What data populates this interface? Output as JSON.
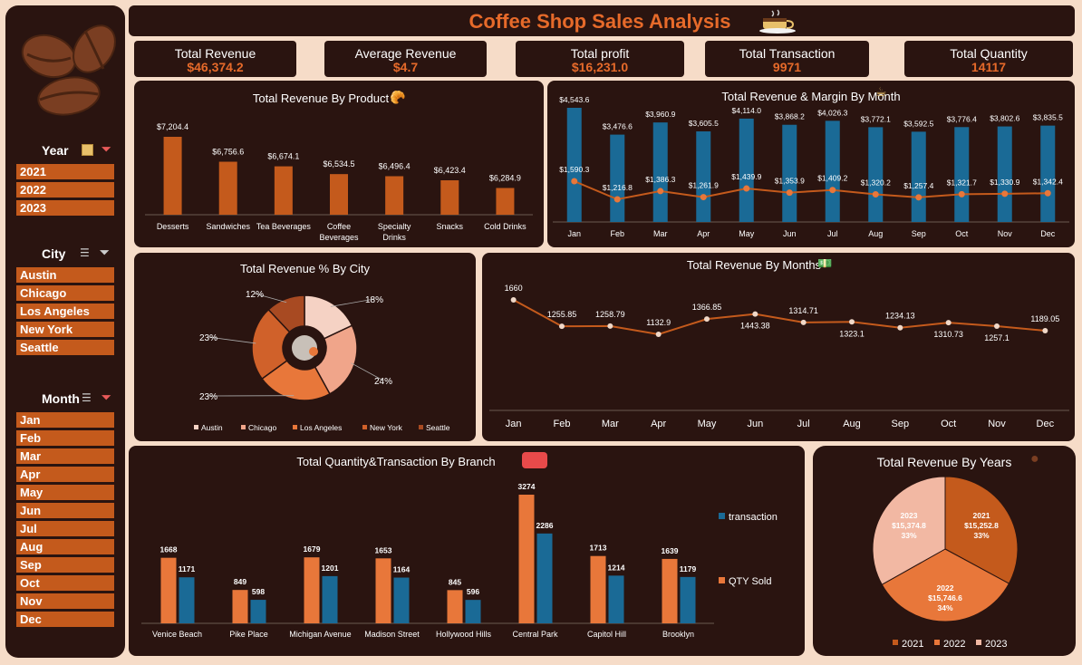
{
  "header": {
    "title": "Coffee Shop Sales Analysis"
  },
  "kpis": [
    {
      "label": "Total Revenue",
      "value": "$46,374.2"
    },
    {
      "label": "Average Revenue",
      "value": "$4.7"
    },
    {
      "label": "Total profit",
      "value": "$16,231.0"
    },
    {
      "label": "Total Transaction",
      "value": "9971"
    },
    {
      "label": "Total Quantity",
      "value": "14117"
    }
  ],
  "slicers": {
    "year": {
      "title": "Year",
      "items": [
        "2021",
        "2022",
        "2023"
      ]
    },
    "city": {
      "title": "City",
      "items": [
        "Austin",
        "Chicago",
        "Los Angeles",
        "New York",
        "Seattle"
      ]
    },
    "month": {
      "title": "Month",
      "items": [
        "Jan",
        "Feb",
        "Mar",
        "Apr",
        "May",
        "Jun",
        "Jul",
        "Aug",
        "Sep",
        "Oct",
        "Nov",
        "Dec"
      ]
    }
  },
  "colors": {
    "accent": "#c45a1c",
    "panel": "#2a1410",
    "bar_blue": "#1a6a96",
    "bar_orange": "#e8773a"
  },
  "chart_data": [
    {
      "type": "bar",
      "title": "Total Revenue By Product",
      "categories": [
        "Desserts",
        "Sandwiches",
        "Tea Beverages",
        "Coffee Beverages",
        "Specialty Drinks",
        "Snacks",
        "Cold Drinks"
      ],
      "values": [
        7204.4,
        6756.6,
        6674.1,
        6534.5,
        6496.4,
        6423.4,
        6284.9
      ],
      "labels": [
        "$7,204.4",
        "$6,756.6",
        "$6,674.1",
        "$6,534.5",
        "$6,496.4",
        "$6,423.4",
        "$6,284.9"
      ]
    },
    {
      "type": "bar",
      "title": "Total Revenue & Margin By Month",
      "categories": [
        "Jan",
        "Feb",
        "Mar",
        "Apr",
        "May",
        "Jun",
        "Jul",
        "Aug",
        "Sep",
        "Oct",
        "Nov",
        "Dec"
      ],
      "revenue": [
        4543.6,
        3476.6,
        3960.9,
        3605.5,
        4114.0,
        3868.2,
        4026.3,
        3772.1,
        3592.5,
        3776.4,
        3802.6,
        3835.5
      ],
      "revenue_labels": [
        "$4,543.6",
        "$3,476.6",
        "$3,960.9",
        "$3,605.5",
        "$4,114.0",
        "$3,868.2",
        "$4,026.3",
        "$3,772.1",
        "$3,592.5",
        "$3,776.4",
        "$3,802.6",
        "$3,835.5"
      ],
      "margin": [
        1590.3,
        1216.8,
        1386.3,
        1261.9,
        1439.9,
        1353.9,
        1409.2,
        1320.2,
        1257.4,
        1321.7,
        1330.9,
        1342.4
      ],
      "margin_labels": [
        "$1,590.3",
        "$1,216.8",
        "$1,386.3",
        "$1,261.9",
        "$1,439.9",
        "$1,353.9",
        "$1,409.2",
        "$1,320.2",
        "$1,257.4",
        "$1,321.7",
        "$1,330.9",
        "$1,342.4"
      ]
    },
    {
      "type": "pie",
      "title": "Total Revenue % By City",
      "categories": [
        "Austin",
        "Chicago",
        "Los Angeles",
        "New York",
        "Seattle"
      ],
      "values": [
        18,
        24,
        23,
        23,
        12
      ],
      "labels": [
        "18%",
        "24%",
        "23%",
        "23%",
        "12%"
      ],
      "colors": [
        "#f5d2c4",
        "#f0a58a",
        "#e8773a",
        "#d0612a",
        "#a84a22"
      ]
    },
    {
      "type": "line",
      "title": "Total Revenue By Months",
      "categories": [
        "Jan",
        "Feb",
        "Mar",
        "Apr",
        "May",
        "Jun",
        "Jul",
        "Aug",
        "Sep",
        "Oct",
        "Nov",
        "Dec"
      ],
      "values": [
        1660,
        1255.85,
        1258.79,
        1132.9,
        1366.85,
        1443.38,
        1314.71,
        1323.1,
        1234.13,
        1310.73,
        1257.1,
        1189.05
      ],
      "labels": [
        "1660",
        "1255.85",
        "1258.79",
        "1132.9",
        "1366.85",
        "1443.38",
        "1314.71",
        "1323.1",
        "1234.13",
        "1310.73",
        "1257.1",
        "1189.05"
      ]
    },
    {
      "type": "bar",
      "title": "Total Quantity&Transaction By Branch",
      "categories": [
        "Venice Beach",
        "Pike Place",
        "Michigan Avenue",
        "Madison Street",
        "Hollywood Hills",
        "Central Park",
        "Capitol Hill",
        "Brooklyn"
      ],
      "series": [
        {
          "name": "QTY Sold",
          "values": [
            1668,
            849,
            1679,
            1653,
            845,
            3274,
            1713,
            1639
          ]
        },
        {
          "name": "transaction",
          "values": [
            1171,
            598,
            1201,
            1164,
            596,
            2286,
            1214,
            1179
          ]
        }
      ]
    },
    {
      "type": "pie",
      "title": "Total Revenue By Years",
      "categories": [
        "2021",
        "2022",
        "2023"
      ],
      "values": [
        15252.8,
        15746.6,
        15374.8
      ],
      "value_labels": [
        "$15,252.8",
        "$15,746.6",
        "$15,374.8"
      ],
      "pct_labels": [
        "33%",
        "34%",
        "33%"
      ],
      "colors": [
        "#c45a1c",
        "#e8773a",
        "#f2b8a3"
      ]
    }
  ]
}
